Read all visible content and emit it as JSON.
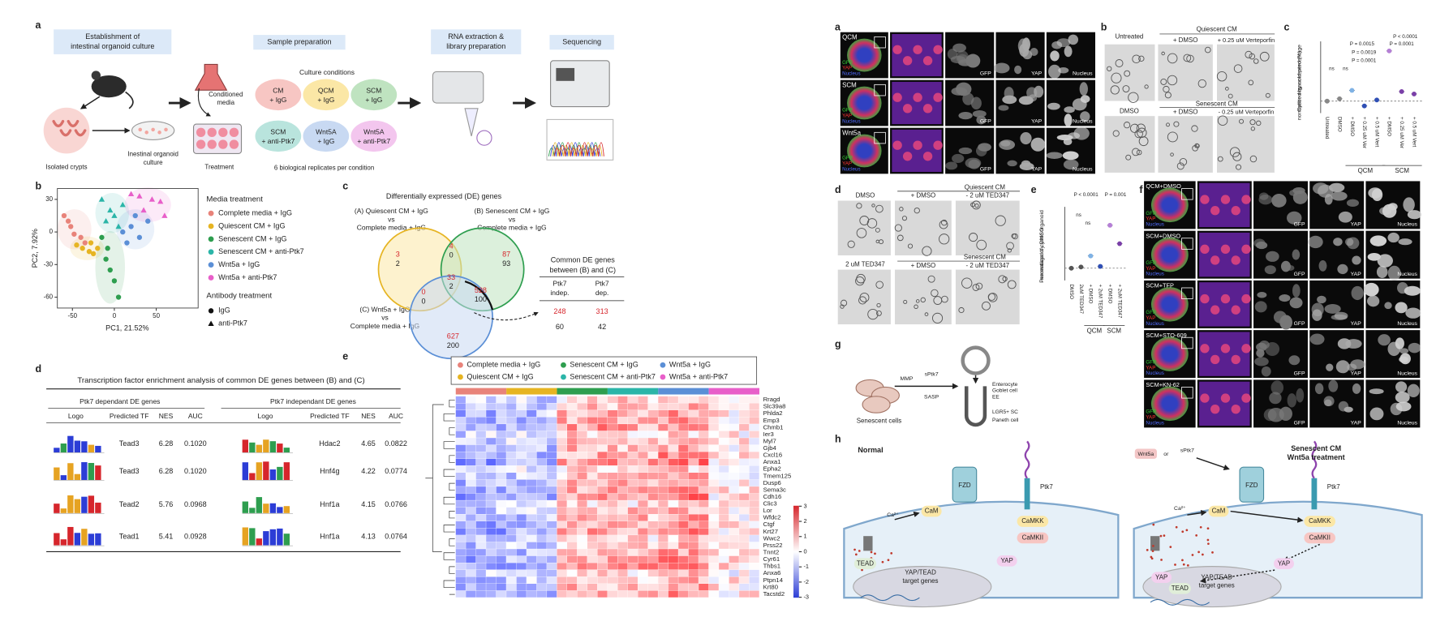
{
  "panel_labels": [
    "a",
    "b",
    "c",
    "d",
    "e",
    "a",
    "b",
    "c",
    "d",
    "e",
    "f",
    "g",
    "h"
  ],
  "workflow": {
    "steps": [
      [
        "Establishment of",
        "intestinal organoid culture"
      ],
      [
        "Sample preparation"
      ],
      [
        "RNA extraction &",
        "library preparation"
      ],
      [
        "Sequencing"
      ]
    ],
    "isolated_crypts": "Isolated crypts",
    "organoid_culture": [
      "Inestinal organoid",
      "culture"
    ],
    "conditioned_media": [
      "Conditioned",
      "media"
    ],
    "treatment": "Treatment",
    "culture_conditions": "Culture conditions",
    "conditions": [
      [
        "CM",
        "+ IgG"
      ],
      [
        "QCM",
        "+ IgG"
      ],
      [
        "SCM",
        "+ IgG"
      ],
      [
        "SCM",
        "+ anti-Ptk7"
      ],
      [
        "Wnt5A",
        "+ IgG"
      ],
      [
        "Wnt5A",
        "+ anti-Ptk7"
      ]
    ],
    "condition_colors": [
      "#f7c6c3",
      "#fbe7a6",
      "#bfe3c0",
      "#b9e4dd",
      "#c8d9f2",
      "#f3c6ee"
    ],
    "replicates": "6 biological replicates per condition"
  },
  "pca": {
    "type": "scatter",
    "xlabel": "PC1, 21.52%",
    "ylabel": "PC2, 7.92%",
    "xlim": [
      -68,
      100
    ],
    "ylim": [
      -70,
      40
    ],
    "xticks": [
      -50,
      0,
      50
    ],
    "yticks": [
      30,
      0,
      -30,
      -60
    ],
    "legend_title": "Media treatment",
    "series": [
      {
        "name": "Complete media + IgG",
        "color": "#e8837a",
        "marker": "circle",
        "x": [
          -60,
          -52,
          -48,
          -40,
          -35,
          -55
        ],
        "values": [
          15,
          5,
          -2,
          -5,
          -10,
          10
        ]
      },
      {
        "name": "Quiescent CM + IgG",
        "color": "#e6b422",
        "marker": "circle",
        "x": [
          -45,
          -38,
          -30,
          -25,
          -20,
          -28
        ],
        "values": [
          -12,
          -15,
          -18,
          -20,
          -15,
          -10
        ]
      },
      {
        "name": "Senescent CM + IgG",
        "color": "#2e9e4f",
        "marker": "circle",
        "x": [
          -15,
          -10,
          -5,
          0,
          5,
          -8
        ],
        "values": [
          -5,
          -25,
          -35,
          -45,
          -60,
          -15
        ]
      },
      {
        "name": "Senescent CM + anti-Ptk7",
        "color": "#2bb5a8",
        "marker": "triangle",
        "x": [
          -15,
          -5,
          0,
          5,
          -10,
          10
        ],
        "values": [
          30,
          20,
          15,
          5,
          10,
          25
        ]
      },
      {
        "name": "Wnt5a + IgG",
        "color": "#5b8fd6",
        "marker": "circle",
        "x": [
          10,
          20,
          30,
          25,
          40,
          15
        ],
        "values": [
          0,
          5,
          -5,
          15,
          10,
          -10
        ]
      },
      {
        "name": "Wnt5a + anti-Ptk7",
        "color": "#e85fc9",
        "marker": "triangle",
        "x": [
          20,
          30,
          45,
          55,
          35,
          60
        ],
        "values": [
          35,
          33,
          30,
          28,
          20,
          15
        ]
      }
    ],
    "antibody_title": "Antibody treatment",
    "antibody": [
      "IgG",
      "anti-Ptk7"
    ]
  },
  "venn": {
    "title": "Differentially expressed (DE) genes",
    "set_a": [
      "(A) Quiescent CM + IgG",
      "vs",
      "Complete media + IgG"
    ],
    "set_b": [
      "(B) Senescent CM + IgG",
      "vs",
      "Complete media + IgG"
    ],
    "set_c": [
      "(C) Wnt5a + IgG",
      "vs",
      "Complete media + IgG"
    ],
    "regions": [
      [
        3,
        2
      ],
      [
        4,
        0
      ],
      [
        87,
        93
      ],
      [
        33,
        2
      ],
      [
        0,
        0
      ],
      [
        528,
        100
      ],
      [
        627,
        200
      ]
    ],
    "common_title": [
      "Common DE genes",
      "between (B) and (C)"
    ],
    "common_headers": [
      [
        "Ptk7",
        "indep."
      ],
      [
        "Ptk7",
        "dep."
      ]
    ],
    "common_rows": [
      [
        248,
        313
      ],
      [
        60,
        42
      ]
    ]
  },
  "tf": {
    "title": "Transcription factor enrichment analysis of common DE genes between (B) and (C)",
    "groups": [
      "Ptk7 dependant DE genes",
      "Ptk7 independant DE genes"
    ],
    "columns": [
      "Logo",
      "Predicted TF",
      "NES",
      "AUC"
    ],
    "rows": [
      [
        "Tead3",
        6.28,
        "0.1020",
        "Hdac2",
        4.65,
        "0.0822"
      ],
      [
        "Tead3",
        6.28,
        "0.1020",
        "Hnf4g",
        4.22,
        "0.0774"
      ],
      [
        "Tead2",
        5.76,
        "0.0968",
        "Hnf1a",
        4.15,
        "0.0766"
      ],
      [
        "Tead1",
        5.41,
        "0.0928",
        "Hnf1a",
        4.13,
        "0.0764"
      ]
    ]
  },
  "heatmap": {
    "legend": [
      "Complete media + IgG",
      "Senescent CM + IgG",
      "Wnt5a + IgG",
      "Quiescent CM + IgG",
      "Senescent CM + anti-Ptk7",
      "Wnt5a + anti-Ptk7"
    ],
    "colors": [
      "#e8837a",
      "#2e9e4f",
      "#5b8fd6",
      "#e6b422",
      "#2bb5a8",
      "#e85fc9"
    ],
    "genes": [
      "Rragd",
      "Slc39a8",
      "Phlda2",
      "Emp3",
      "Chmb1",
      "Ier3",
      "Myl7",
      "Gjb4",
      "Cxcl16",
      "Anxa1",
      "Epha2",
      "Tmem125",
      "Dusp6",
      "Sema3c",
      "Cdh16",
      "Clic3",
      "Lor",
      "Wfdc2",
      "Ctgf",
      "Krt27",
      "Wwc2",
      "Prss22",
      "Tnnt2",
      "Cyr61",
      "Thbs1",
      "Anxa6",
      "Ptpn14",
      "Krt80",
      "Tacstd2"
    ],
    "colorbar_ticks": [
      3,
      2,
      1,
      0,
      -1,
      -2,
      -3
    ]
  },
  "imaging": {
    "rows": [
      "QCM",
      "SCM",
      "Wnt5a"
    ],
    "channels": [
      "GFP",
      "YAP",
      "Nucleus"
    ]
  },
  "verteporfin": {
    "untreated": "Untreated",
    "quiescent": "Quiescent CM",
    "senescent": "Senescent CM",
    "dmso": "DMSO",
    "plus_dmso": "+ DMSO",
    "vp_q": "+ 0.25 uM Verteporfin",
    "vp_s": "- 0.25 uM Verteporfin"
  },
  "verteporfin_quant": {
    "ylabel": [
      "Cystic organoid percentage",
      "normalized by untreated (%)"
    ],
    "groups": [
      "Untreated",
      "DMSO",
      "+ DMSO",
      "+ 0.25 uM Ver",
      "+ 0.5 uM Vert",
      "+ DMSO",
      "+ 0.25 uM Ver",
      "+ 0.5 uM Vert"
    ],
    "values": [
      0,
      10,
      45,
      -20,
      5,
      210,
      40,
      30
    ],
    "ylim": [
      -50,
      250
    ],
    "colors": [
      "#888888",
      "#888888",
      "#7fb2e5",
      "#2f4fb5",
      "#2f4fb5",
      "#b57fd6",
      "#7a3fa8",
      "#7a3fa8"
    ],
    "conditions": [
      "QCM",
      "SCM"
    ],
    "stats": [
      "P < 0.0001",
      "P = 0.0015",
      "P = 0.0001",
      "P = 0.0019",
      "P = 0.0001",
      "ns",
      "ns"
    ]
  },
  "ted347": {
    "dmso": "DMSO",
    "quiescent": "Quiescent CM",
    "senescent": "Senescent CM",
    "plus_dmso": "+ DMSO",
    "ted": "- 2 uM TED347",
    "ted_alone": "2 uM TED347"
  },
  "ted347_quant": {
    "ylabel": [
      "Percentage of cystic organoid",
      "normalized by DMSO"
    ],
    "groups": [
      "DMSO",
      "2uM TED347",
      "+ DMSO",
      "+ 2uM TED347",
      "+ DMSO",
      "+ 2uM TED347"
    ],
    "values": [
      0,
      2,
      20,
      3,
      70,
      40
    ],
    "ylim": [
      -20,
      100
    ],
    "colors": [
      "#555555",
      "#555555",
      "#7fb2e5",
      "#2f4fb5",
      "#b57fd6",
      "#7a3fa8"
    ],
    "conditions": [
      "QCM",
      "SCM"
    ],
    "stats": [
      "P < 0.0001",
      "P = 0.001",
      "ns",
      "ns"
    ]
  },
  "inhibitors": {
    "rows": [
      "QCM+DMSO",
      "SCM+DMSO",
      "SCM+TFP",
      "SCM+STO-609",
      "SCM+KN-62"
    ],
    "channels": [
      "GFP",
      "YAP",
      "Nucleus"
    ]
  },
  "niche": {
    "senescent_cells": "Senescent cells",
    "mmp": "MMP",
    "sptk7": "sPtk7",
    "sasp": "SASP",
    "cells": [
      "Enterocyte",
      "Goblet cell",
      "EE",
      "LGR5+ SC",
      "Paneth cell"
    ]
  },
  "pathway": {
    "normal": "Normal",
    "treated": [
      "Senescent CM",
      "Wnt5a treatment"
    ],
    "wnt5a": "Wnt5a",
    "or": "or",
    "sptk7": "sPtk7",
    "fzd": "FZD",
    "ptk7": "Ptk7",
    "ca": "Ca²⁺",
    "cam": "CaM",
    "camkk": "CaMKK",
    "camkii": "CaMKII",
    "tead": "TEAD",
    "yap": "YAP",
    "target": [
      "YAP/TEAD",
      "target genes"
    ]
  }
}
